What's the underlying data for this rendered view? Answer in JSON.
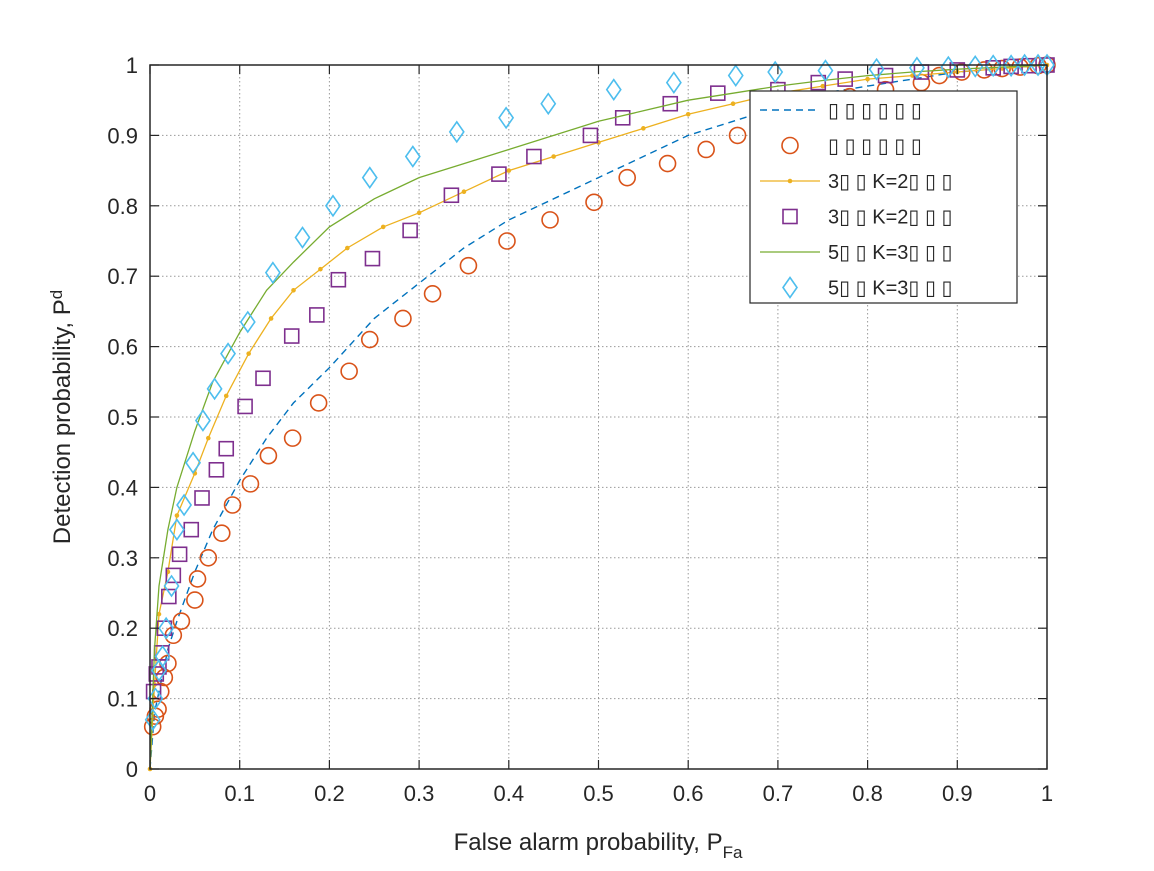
{
  "chart_data": {
    "type": "line",
    "title": "",
    "xlabel": "False alarm probability, P",
    "xlabel_sub": "Fa",
    "ylabel": "Detection probability, P",
    "ylabel_sub": "d",
    "xlim": [
      0,
      1
    ],
    "ylim": [
      0,
      1
    ],
    "xticks": [
      "0",
      "0.1",
      "0.2",
      "0.3",
      "0.4",
      "0.5",
      "0.6",
      "0.7",
      "0.8",
      "0.9",
      "1"
    ],
    "yticks": [
      "0",
      "0.1",
      "0.2",
      "0.3",
      "0.4",
      "0.5",
      "0.6",
      "0.7",
      "0.8",
      "0.9",
      "1"
    ],
    "grid": true,
    "legend_position": "top-right",
    "series": [
      {
        "name": "▯ ▯ ▯ ▯ ▯ ▯",
        "style": "dashed-line",
        "color": "#0072bd",
        "x": [
          0,
          0.005,
          0.01,
          0.02,
          0.03,
          0.05,
          0.07,
          0.1,
          0.13,
          0.16,
          0.2,
          0.25,
          0.3,
          0.35,
          0.4,
          0.45,
          0.5,
          0.55,
          0.6,
          0.65,
          0.7,
          0.75,
          0.8,
          0.85,
          0.9,
          0.95,
          1
        ],
        "y": [
          0,
          0.08,
          0.11,
          0.17,
          0.21,
          0.28,
          0.34,
          0.41,
          0.47,
          0.52,
          0.57,
          0.64,
          0.69,
          0.74,
          0.78,
          0.81,
          0.84,
          0.87,
          0.9,
          0.92,
          0.94,
          0.96,
          0.97,
          0.98,
          0.99,
          0.995,
          1
        ]
      },
      {
        "name": "▯ ▯ ▯ ▯ ▯ ▯",
        "style": "circle-markers",
        "color": "#d95319",
        "x": [
          0.003,
          0.006,
          0.009,
          0.012,
          0.016,
          0.02,
          0.026,
          0.035,
          0.05,
          0.053,
          0.065,
          0.08,
          0.092,
          0.112,
          0.132,
          0.159,
          0.188,
          0.222,
          0.245,
          0.282,
          0.315,
          0.355,
          0.398,
          0.446,
          0.495,
          0.532,
          0.577,
          0.62,
          0.655,
          0.7,
          0.74,
          0.78,
          0.82,
          0.86,
          0.88,
          0.905,
          0.93,
          0.95,
          0.97,
          0.99,
          1
        ],
        "y": [
          0.06,
          0.075,
          0.085,
          0.11,
          0.13,
          0.15,
          0.19,
          0.21,
          0.24,
          0.27,
          0.3,
          0.335,
          0.375,
          0.405,
          0.445,
          0.47,
          0.52,
          0.565,
          0.61,
          0.64,
          0.675,
          0.715,
          0.75,
          0.78,
          0.805,
          0.84,
          0.86,
          0.88,
          0.9,
          0.92,
          0.94,
          0.955,
          0.965,
          0.975,
          0.985,
          0.99,
          0.993,
          0.995,
          0.997,
          0.999,
          1
        ]
      },
      {
        "name": "3▯ ▯ K=2▯ ▯ ▯",
        "style": "line-dot-markers",
        "color": "#edb120",
        "x": [
          0,
          0.005,
          0.01,
          0.02,
          0.03,
          0.05,
          0.065,
          0.085,
          0.11,
          0.135,
          0.16,
          0.19,
          0.22,
          0.26,
          0.3,
          0.35,
          0.4,
          0.45,
          0.5,
          0.55,
          0.6,
          0.65,
          0.7,
          0.75,
          0.8,
          0.85,
          0.9,
          0.95,
          1
        ],
        "y": [
          0,
          0.12,
          0.22,
          0.28,
          0.36,
          0.42,
          0.47,
          0.53,
          0.59,
          0.64,
          0.68,
          0.71,
          0.74,
          0.77,
          0.79,
          0.82,
          0.85,
          0.87,
          0.89,
          0.91,
          0.93,
          0.945,
          0.96,
          0.97,
          0.98,
          0.985,
          0.99,
          0.995,
          1
        ]
      },
      {
        "name": "3▯ ▯ K=2▯ ▯ ▯",
        "style": "square-markers",
        "color": "#7e2f8e",
        "x": [
          0.004,
          0.007,
          0.01,
          0.013,
          0.016,
          0.021,
          0.026,
          0.033,
          0.046,
          0.058,
          0.074,
          0.085,
          0.106,
          0.126,
          0.158,
          0.186,
          0.21,
          0.248,
          0.29,
          0.336,
          0.389,
          0.428,
          0.491,
          0.527,
          0.58,
          0.633,
          0.7,
          0.745,
          0.775,
          0.82,
          0.86,
          0.9,
          0.94,
          0.96,
          0.98,
          1
        ],
        "y": [
          0.11,
          0.135,
          0.145,
          0.165,
          0.2,
          0.245,
          0.275,
          0.305,
          0.34,
          0.385,
          0.425,
          0.455,
          0.515,
          0.555,
          0.615,
          0.645,
          0.695,
          0.725,
          0.765,
          0.815,
          0.845,
          0.87,
          0.9,
          0.925,
          0.945,
          0.96,
          0.965,
          0.975,
          0.98,
          0.985,
          0.99,
          0.993,
          0.996,
          0.998,
          0.999,
          1
        ]
      },
      {
        "name": "5▯ ▯ K=3▯ ▯ ▯",
        "style": "solid-line",
        "color": "#77ac30",
        "x": [
          0,
          0.005,
          0.01,
          0.02,
          0.03,
          0.05,
          0.07,
          0.1,
          0.13,
          0.16,
          0.2,
          0.25,
          0.3,
          0.35,
          0.4,
          0.45,
          0.5,
          0.55,
          0.6,
          0.65,
          0.7,
          0.75,
          0.8,
          0.85,
          0.9,
          0.95,
          1
        ],
        "y": [
          0,
          0.17,
          0.26,
          0.34,
          0.4,
          0.48,
          0.55,
          0.62,
          0.68,
          0.72,
          0.77,
          0.81,
          0.84,
          0.86,
          0.88,
          0.9,
          0.92,
          0.935,
          0.95,
          0.96,
          0.97,
          0.978,
          0.985,
          0.99,
          0.994,
          0.997,
          1
        ]
      },
      {
        "name": "5▯ ▯ K=3▯ ▯ ▯",
        "style": "diamond-markers",
        "color": "#4dbeee",
        "x": [
          0.003,
          0.006,
          0.01,
          0.014,
          0.018,
          0.024,
          0.03,
          0.038,
          0.048,
          0.059,
          0.072,
          0.087,
          0.109,
          0.137,
          0.17,
          0.204,
          0.245,
          0.293,
          0.342,
          0.397,
          0.444,
          0.517,
          0.584,
          0.653,
          0.697,
          0.753,
          0.81,
          0.855,
          0.89,
          0.92,
          0.94,
          0.96,
          0.975,
          0.99,
          1
        ],
        "y": [
          0.07,
          0.1,
          0.14,
          0.16,
          0.2,
          0.26,
          0.34,
          0.375,
          0.435,
          0.495,
          0.54,
          0.59,
          0.635,
          0.705,
          0.755,
          0.8,
          0.84,
          0.87,
          0.905,
          0.925,
          0.945,
          0.965,
          0.975,
          0.985,
          0.99,
          0.992,
          0.994,
          0.996,
          0.997,
          0.998,
          0.999,
          0.999,
          1,
          1,
          1
        ]
      }
    ]
  }
}
